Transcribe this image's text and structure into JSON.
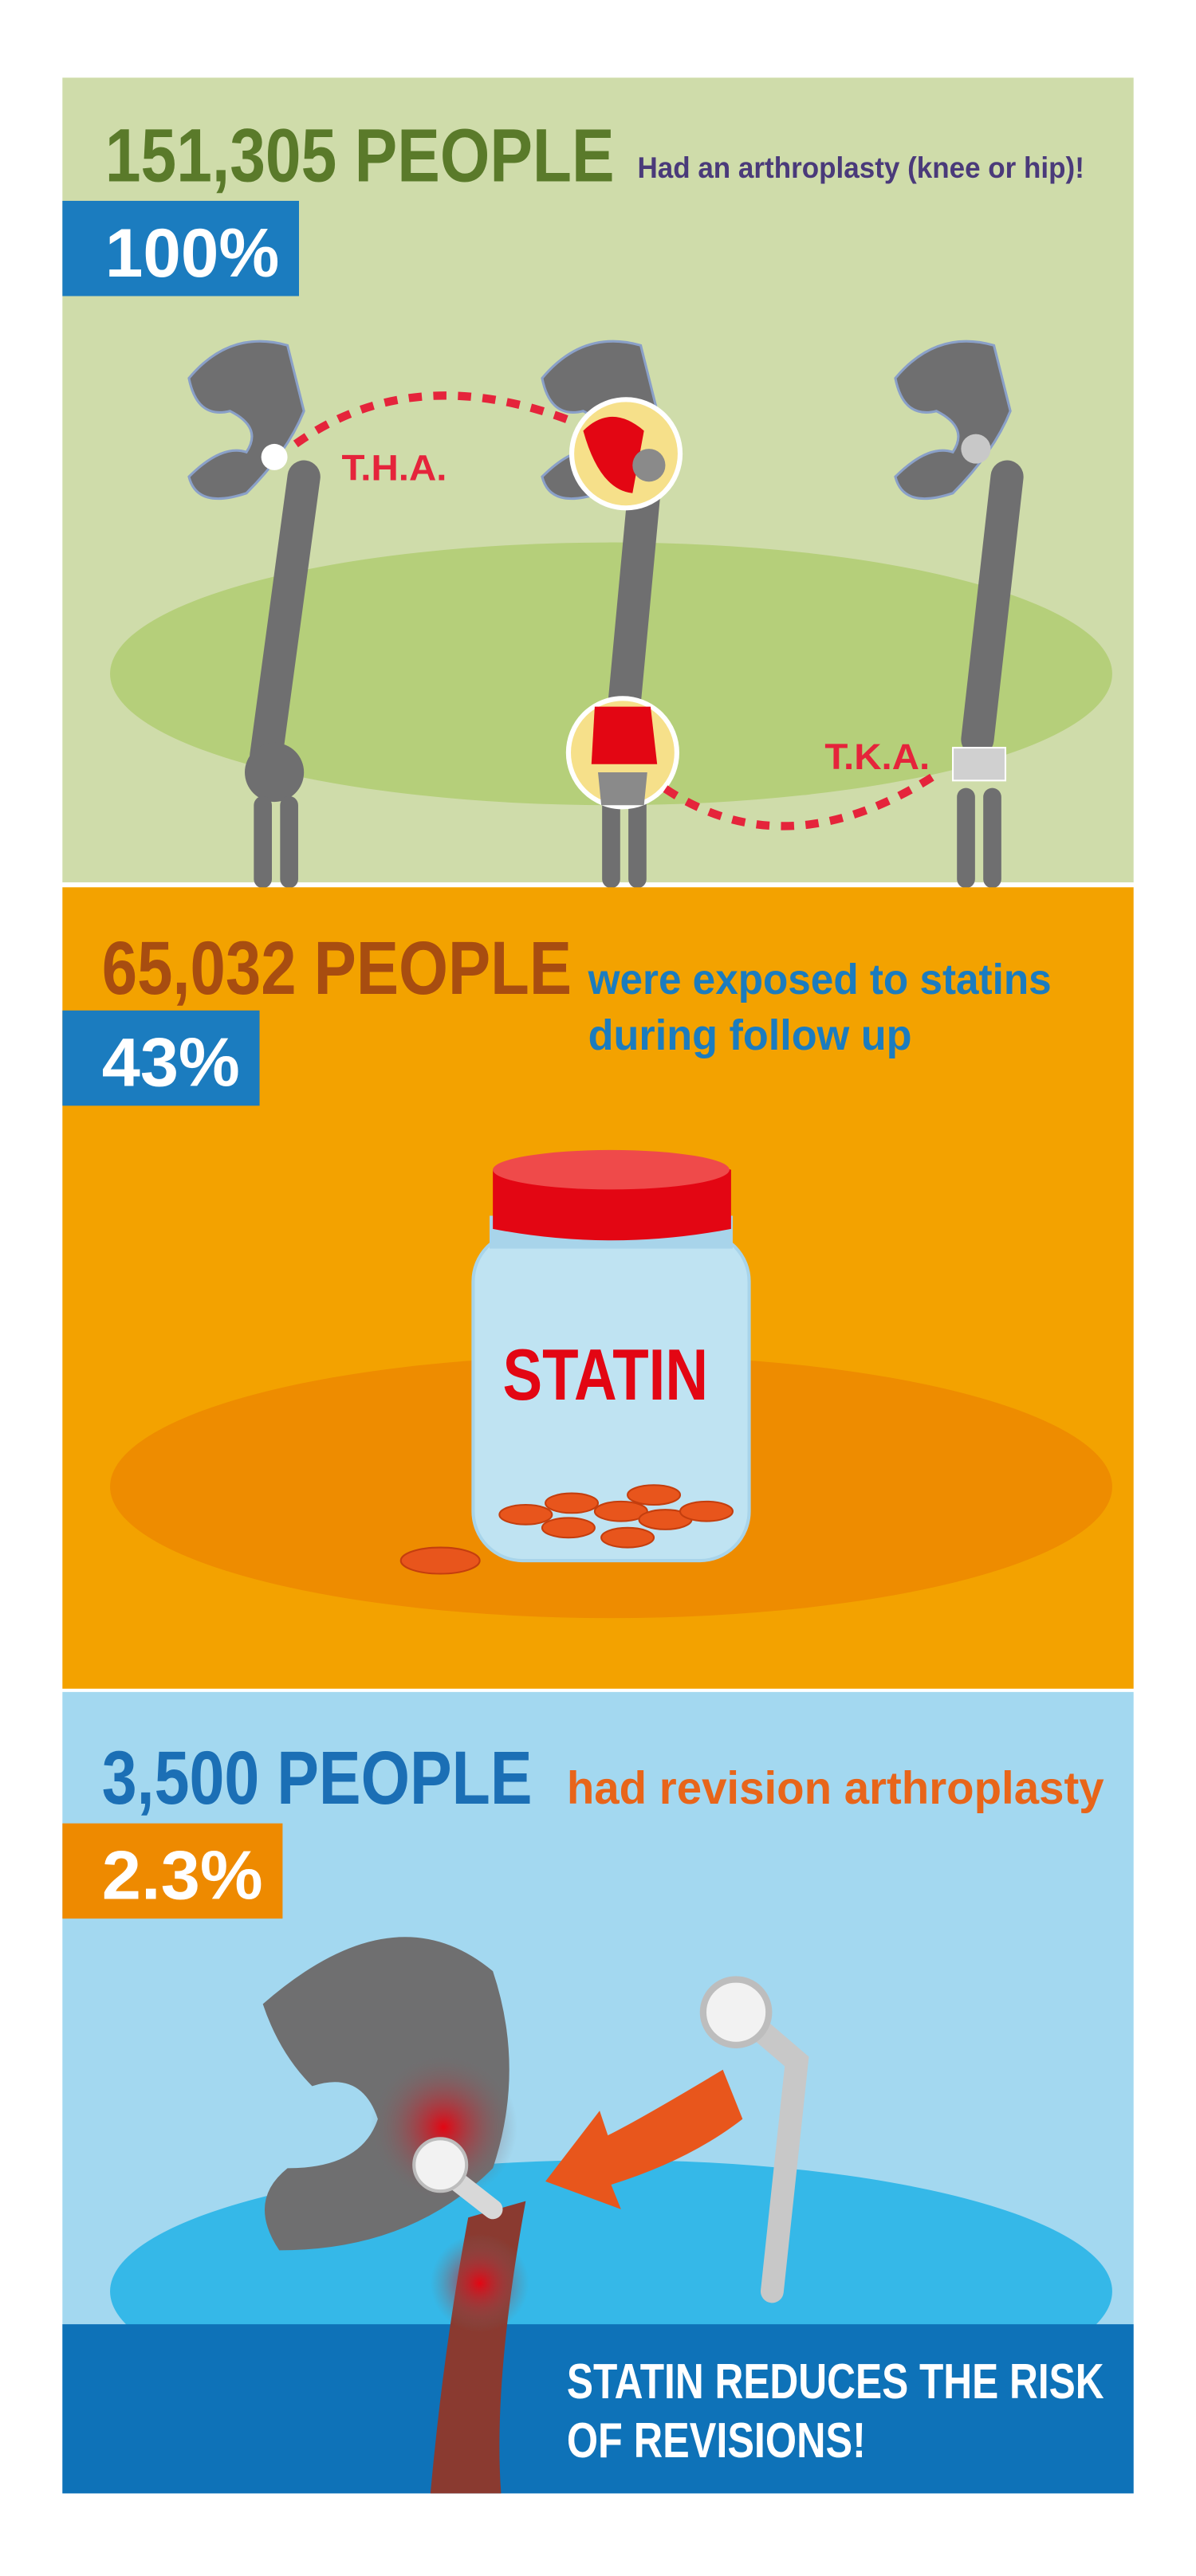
{
  "sections": [
    {
      "count": "151,305 PEOPLE",
      "description": [
        "Had an arthroplasty (knee or hip)!"
      ],
      "percent": "100%"
    },
    {
      "count": "65,032 PEOPLE",
      "description": [
        "were exposed to statins",
        "during follow up"
      ],
      "percent": "43%"
    },
    {
      "count": "3,500 PEOPLE",
      "description": [
        "had revision arthroplasty"
      ],
      "percent": "2.3%"
    }
  ],
  "labels": {
    "hip": "T.H.A.",
    "knee": "T.K.A.",
    "jar": "STATIN"
  },
  "conclusion": [
    "STATIN REDUCES THE RISK",
    "OF REVISIONS!"
  ]
}
